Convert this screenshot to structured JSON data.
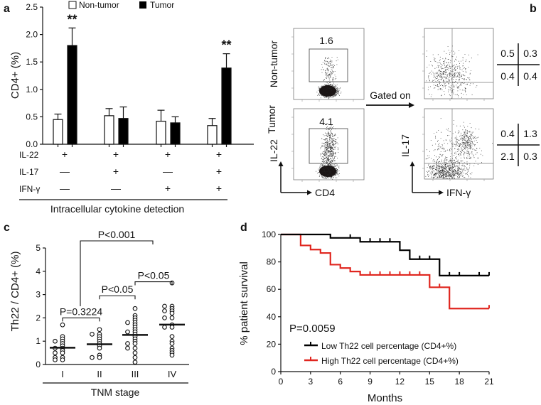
{
  "chart_data": [
    {
      "panel": "a",
      "type": "bar",
      "ylabel": "CD4+ (%)",
      "ylim": [
        0,
        2.5
      ],
      "yticks": [
        "0.0",
        "0.5",
        "1.0",
        "1.5",
        "2.0",
        "2.5"
      ],
      "xlabel": "Intracellular cytokine detection",
      "legend": [
        "Non-tumor",
        "Tumor"
      ],
      "legend_position": "top",
      "row_labels": [
        "IL-22",
        "IL-17",
        "IFN-γ"
      ],
      "categories": [
        [
          "+",
          "—",
          "—"
        ],
        [
          "+",
          "+",
          "—"
        ],
        [
          "+",
          "—",
          "+"
        ],
        [
          "+",
          "+",
          "+"
        ]
      ],
      "series": [
        {
          "name": "Non-tumor",
          "color": "#ffffff",
          "values": [
            0.45,
            0.52,
            0.42,
            0.34
          ],
          "errors": [
            0.1,
            0.13,
            0.2,
            0.13
          ]
        },
        {
          "name": "Tumor",
          "color": "#000000",
          "values": [
            1.8,
            0.47,
            0.39,
            1.39
          ],
          "errors": [
            0.32,
            0.21,
            0.11,
            0.26
          ]
        }
      ],
      "annotations": [
        "**",
        "",
        "",
        "**"
      ]
    },
    {
      "panel": "b",
      "type": "scatter",
      "row_labels": [
        "Non-tumor",
        "Tumor"
      ],
      "left_axes": {
        "x": "CD4",
        "y": "IL-22"
      },
      "right_axes": {
        "x": "IFN-γ",
        "y": "IL-17"
      },
      "gate_values": [
        "1.6",
        "4.1"
      ],
      "gated_label": "Gated on",
      "quadrants": [
        [
          [
            "0.5",
            "0.3"
          ],
          [
            "0.4",
            "0.4"
          ]
        ],
        [
          [
            "0.4",
            "1.3"
          ],
          [
            "2.1",
            "0.3"
          ]
        ]
      ]
    },
    {
      "panel": "c",
      "type": "scatter",
      "ylabel": "Th22 / CD4+ (%)",
      "xlabel": "TNM stage",
      "ylim": [
        0,
        5
      ],
      "yticks": [
        "0",
        "1",
        "2",
        "3",
        "4",
        "5"
      ],
      "categories": [
        "I",
        "II",
        "III",
        "IV"
      ],
      "values": [
        [
          1.7,
          1.2,
          1.1,
          1.0,
          0.9,
          0.8,
          0.7,
          0.6,
          0.5,
          0.5,
          0.3,
          0.3,
          0.2,
          0.2,
          0.7,
          1.0
        ],
        [
          1.5,
          1.3,
          1.3,
          1.2,
          1.1,
          1.0,
          0.9,
          0.8,
          0.7,
          0.4,
          0.3,
          0.3
        ],
        [
          2.4,
          2.1,
          2.0,
          1.9,
          1.8,
          1.8,
          1.7,
          1.6,
          1.5,
          1.4,
          1.4,
          1.3,
          1.2,
          1.1,
          1.0,
          0.9,
          0.9,
          0.7,
          0.7,
          0.5,
          0.3,
          0.1
        ],
        [
          3.5,
          2.5,
          2.5,
          2.4,
          2.3,
          2.3,
          2.2,
          2.0,
          2.0,
          1.7,
          1.6,
          1.6,
          1.2,
          1.0,
          0.9,
          0.7,
          0.6,
          0.5,
          0.4
        ]
      ],
      "means": [
        0.72,
        0.87,
        1.27,
        1.71
      ],
      "comparisons": [
        {
          "from": 0,
          "to": 1,
          "label": "P=0.3224"
        },
        {
          "from": 1,
          "to": 2,
          "label": "P<0.05"
        },
        {
          "from": 2,
          "to": 3,
          "label": "P<0.05"
        },
        {
          "from": 0,
          "to": 3,
          "label": "P<0.001"
        }
      ]
    },
    {
      "panel": "d",
      "type": "line",
      "ylabel": "% patient survival",
      "xlabel": "Months",
      "xlim": [
        0,
        21
      ],
      "ylim": [
        0,
        100
      ],
      "xticks": [
        "0",
        "3",
        "6",
        "9",
        "12",
        "15",
        "18",
        "21"
      ],
      "yticks": [
        "0",
        "20",
        "40",
        "60",
        "80",
        "100"
      ],
      "pvalue": "P=0.0059",
      "legend_position": "bottom-left",
      "series": [
        {
          "name": "Low Th22 cell percentage (CD4+%)",
          "color": "#000000",
          "steps": [
            [
              0,
              100
            ],
            [
              5,
              97.5
            ],
            [
              8,
              94.7
            ],
            [
              12,
              88.5
            ],
            [
              13,
              82
            ],
            [
              16,
              70
            ],
            [
              21,
              70
            ]
          ],
          "censored": [
            7,
            9,
            10,
            11,
            14,
            15,
            17,
            18,
            20,
            21
          ]
        },
        {
          "name": "High Th22 cell percentage (CD4+%)",
          "color": "#e0261f",
          "steps": [
            [
              0,
              100
            ],
            [
              2,
              92
            ],
            [
              3,
              89
            ],
            [
              4,
              86.5
            ],
            [
              5,
              78
            ],
            [
              6,
              75.5
            ],
            [
              7,
              73
            ],
            [
              8,
              70.5
            ],
            [
              15,
              61.5
            ],
            [
              17,
              46
            ],
            [
              21,
              46
            ]
          ],
          "censored": [
            9,
            10,
            11,
            12,
            13,
            14,
            16,
            21
          ]
        }
      ]
    }
  ],
  "panel_labels": [
    "a",
    "b",
    "c",
    "d"
  ]
}
